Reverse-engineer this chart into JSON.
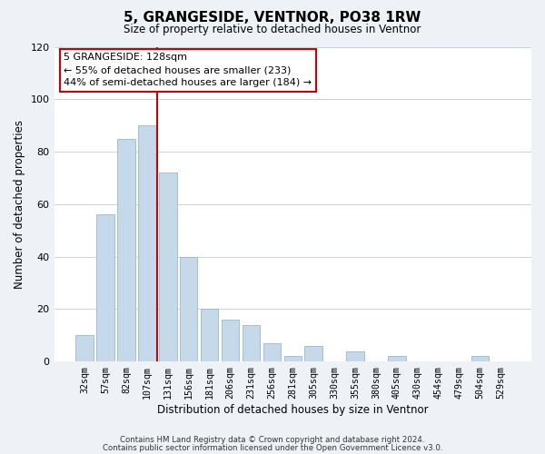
{
  "title": "5, GRANGESIDE, VENTNOR, PO38 1RW",
  "subtitle": "Size of property relative to detached houses in Ventnor",
  "xlabel": "Distribution of detached houses by size in Ventnor",
  "ylabel": "Number of detached properties",
  "bar_color": "#c6d9ea",
  "bar_edge_color": "#9ab8d0",
  "categories": [
    "32sqm",
    "57sqm",
    "82sqm",
    "107sqm",
    "131sqm",
    "156sqm",
    "181sqm",
    "206sqm",
    "231sqm",
    "256sqm",
    "281sqm",
    "305sqm",
    "330sqm",
    "355sqm",
    "380sqm",
    "405sqm",
    "430sqm",
    "454sqm",
    "479sqm",
    "504sqm",
    "529sqm"
  ],
  "values": [
    10,
    56,
    85,
    90,
    72,
    40,
    20,
    16,
    14,
    7,
    2,
    6,
    0,
    4,
    0,
    2,
    0,
    0,
    0,
    2,
    0
  ],
  "vline_x": 3.5,
  "vline_color": "#cc0000",
  "ylim": [
    0,
    120
  ],
  "yticks": [
    0,
    20,
    40,
    60,
    80,
    100,
    120
  ],
  "annotation_title": "5 GRANGESIDE: 128sqm",
  "annotation_line1": "← 55% of detached houses are smaller (233)",
  "annotation_line2": "44% of semi-detached houses are larger (184) →",
  "footer1": "Contains HM Land Registry data © Crown copyright and database right 2024.",
  "footer2": "Contains public sector information licensed under the Open Government Licence v3.0.",
  "background_color": "#eef2f7",
  "plot_background_color": "#ffffff",
  "grid_color": "#c8d4e0"
}
